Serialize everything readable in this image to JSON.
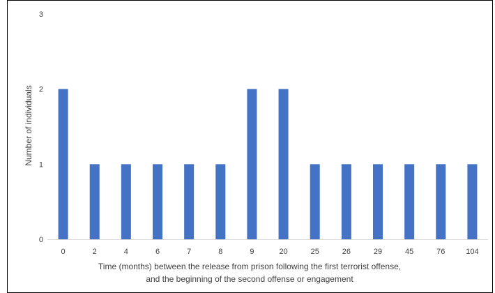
{
  "chart_data": {
    "type": "bar",
    "categories": [
      "0",
      "2",
      "4",
      "6",
      "7",
      "8",
      "9",
      "20",
      "25",
      "26",
      "29",
      "45",
      "76",
      "104"
    ],
    "values": [
      2,
      1,
      1,
      1,
      1,
      1,
      2,
      2,
      1,
      1,
      1,
      1,
      1,
      1
    ],
    "title": "",
    "xlabel": [
      "Time (months) between the release from prison following the first terrorist offense,",
      "and the beginning of the second offense or engagement"
    ],
    "ylabel": "Number of individuals",
    "ylim": [
      0,
      3
    ],
    "yticks": [
      "0",
      "1",
      "2",
      "3"
    ],
    "grid": false,
    "legend": "none",
    "colors": {
      "bar": "#4472C4",
      "text": "#404040",
      "axis": "#D9D9D9",
      "frame": "#000000"
    }
  }
}
